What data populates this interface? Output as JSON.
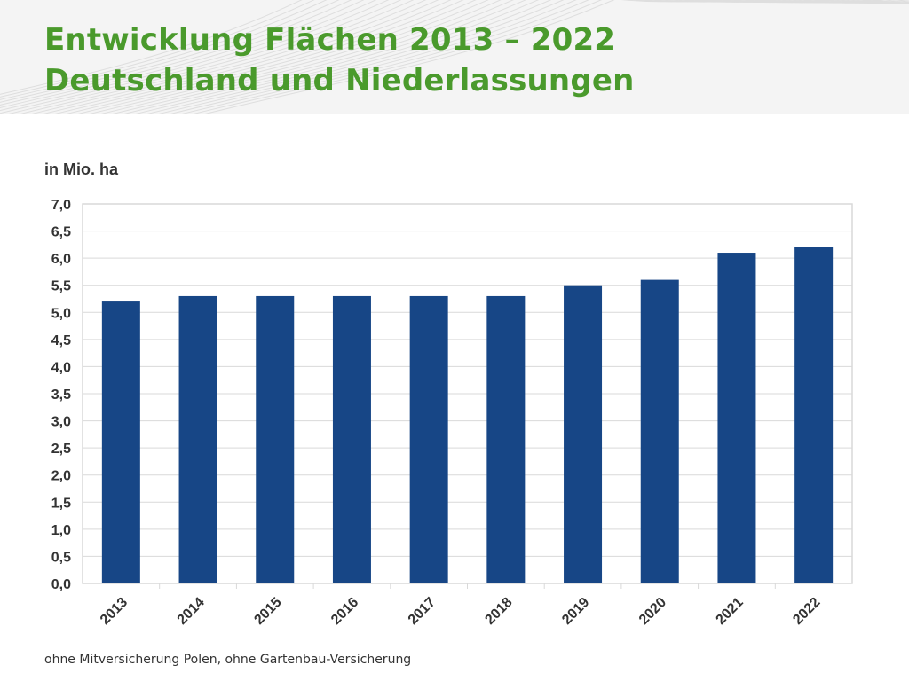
{
  "header": {
    "title_line1": "Entwicklung Flächen 2013 – 2022",
    "title_line2": "Deutschland und Niederlassungen"
  },
  "colors": {
    "title": "#4a9a2c",
    "bar": "#174686",
    "grid": "#d9d9d9",
    "header_bg": "#f4f4f4"
  },
  "footnote": "ohne Mitversicherung Polen, ohne Gartenbau-Versicherung",
  "chart_data": {
    "type": "bar",
    "ylabel": "in Mio. ha",
    "categories": [
      "2013",
      "2014",
      "2015",
      "2016",
      "2017",
      "2018",
      "2019",
      "2020",
      "2021",
      "2022"
    ],
    "values": [
      5.2,
      5.3,
      5.3,
      5.3,
      5.3,
      5.3,
      5.5,
      5.6,
      6.1,
      6.2
    ],
    "ylim": [
      0,
      7
    ],
    "yticks": [
      "0,0",
      "0,5",
      "1,0",
      "1,5",
      "2,0",
      "2,5",
      "3,0",
      "3,5",
      "4,0",
      "4,5",
      "5,0",
      "5,5",
      "6,0",
      "6,5",
      "7,0"
    ],
    "grid": true,
    "legend": false
  }
}
